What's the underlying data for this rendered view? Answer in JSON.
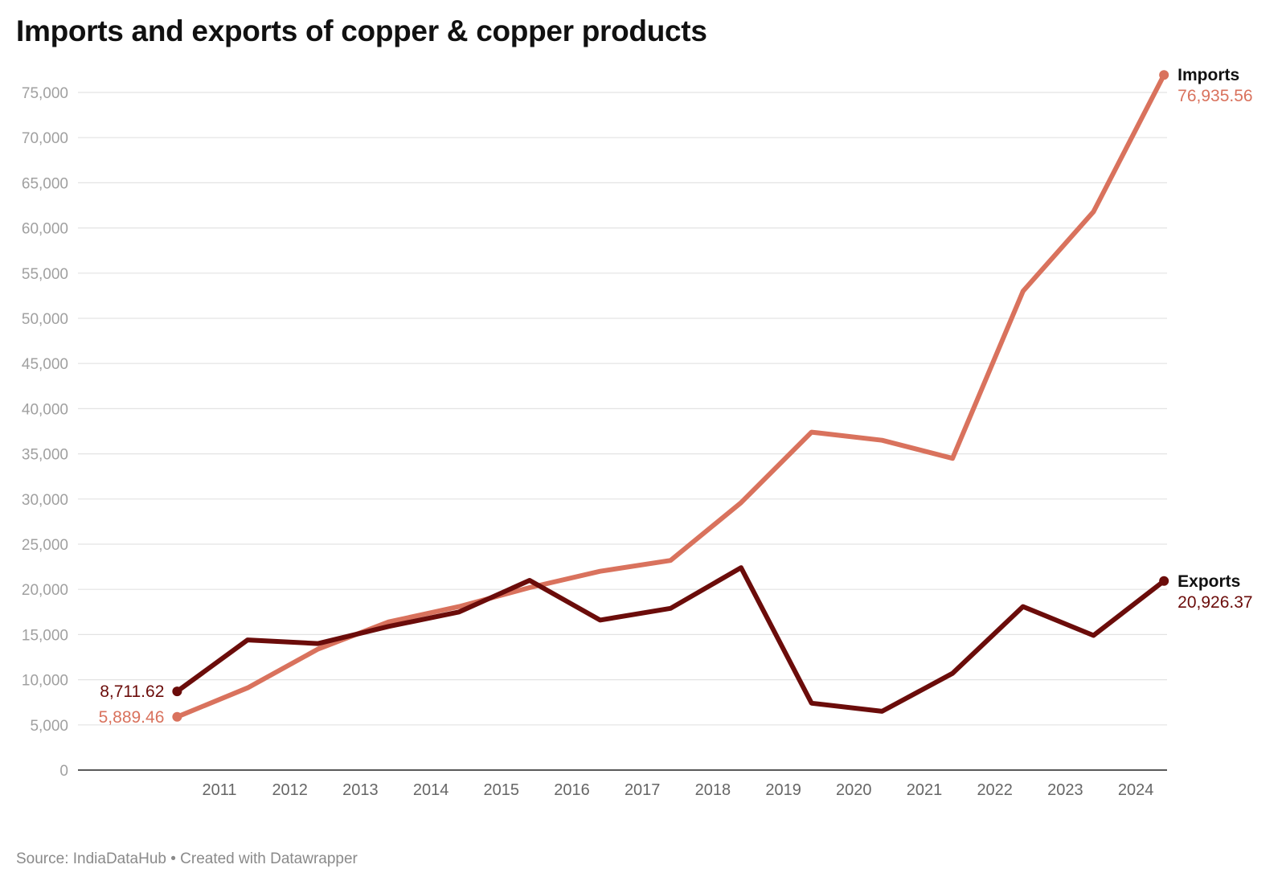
{
  "title": "Imports and exports of copper & copper products",
  "footer": "Source: IndiaDataHub • Created with Datawrapper",
  "chart_data": {
    "type": "line",
    "title": "Imports and exports of copper & copper products",
    "xlabel": "",
    "ylabel": "",
    "x_ticks": [
      "2011",
      "2012",
      "2013",
      "2014",
      "2015",
      "2016",
      "2017",
      "2018",
      "2019",
      "2020",
      "2021",
      "2022",
      "2023",
      "2024"
    ],
    "y_ticks": [
      "0",
      "5,000",
      "10,000",
      "15,000",
      "20,000",
      "25,000",
      "30,000",
      "35,000",
      "40,000",
      "45,000",
      "50,000",
      "55,000",
      "60,000",
      "65,000",
      "70,000",
      "75,000"
    ],
    "ylim": [
      0,
      75000
    ],
    "grid": true,
    "series": [
      {
        "name": "Imports",
        "color": "#d9725d",
        "start_label": "5,889.46",
        "end_label": "76,935.56",
        "x": [
          2010.4,
          2011.4,
          2012.4,
          2013.4,
          2014.4,
          2015.4,
          2016.4,
          2017.4,
          2018.4,
          2019.4,
          2020.4,
          2021.4,
          2022.4,
          2023.4,
          2024.4
        ],
        "values": [
          5889.46,
          9100,
          13400,
          16400,
          18100,
          20200,
          22000,
          23200,
          29600,
          37400,
          36500,
          34500,
          53000,
          61800,
          76935.56
        ]
      },
      {
        "name": "Exports",
        "color": "#6b0c0a",
        "start_label": "8,711.62",
        "end_label": "20,926.37",
        "x": [
          2010.4,
          2011.4,
          2012.4,
          2013.4,
          2014.4,
          2015.4,
          2016.4,
          2017.4,
          2018.4,
          2019.4,
          2020.4,
          2021.4,
          2022.4,
          2023.4,
          2024.4
        ],
        "values": [
          8711.62,
          14400,
          14000,
          15900,
          17500,
          21000,
          16600,
          17900,
          22400,
          7400,
          6500,
          10700,
          18100,
          14900,
          20926.37
        ]
      }
    ]
  }
}
